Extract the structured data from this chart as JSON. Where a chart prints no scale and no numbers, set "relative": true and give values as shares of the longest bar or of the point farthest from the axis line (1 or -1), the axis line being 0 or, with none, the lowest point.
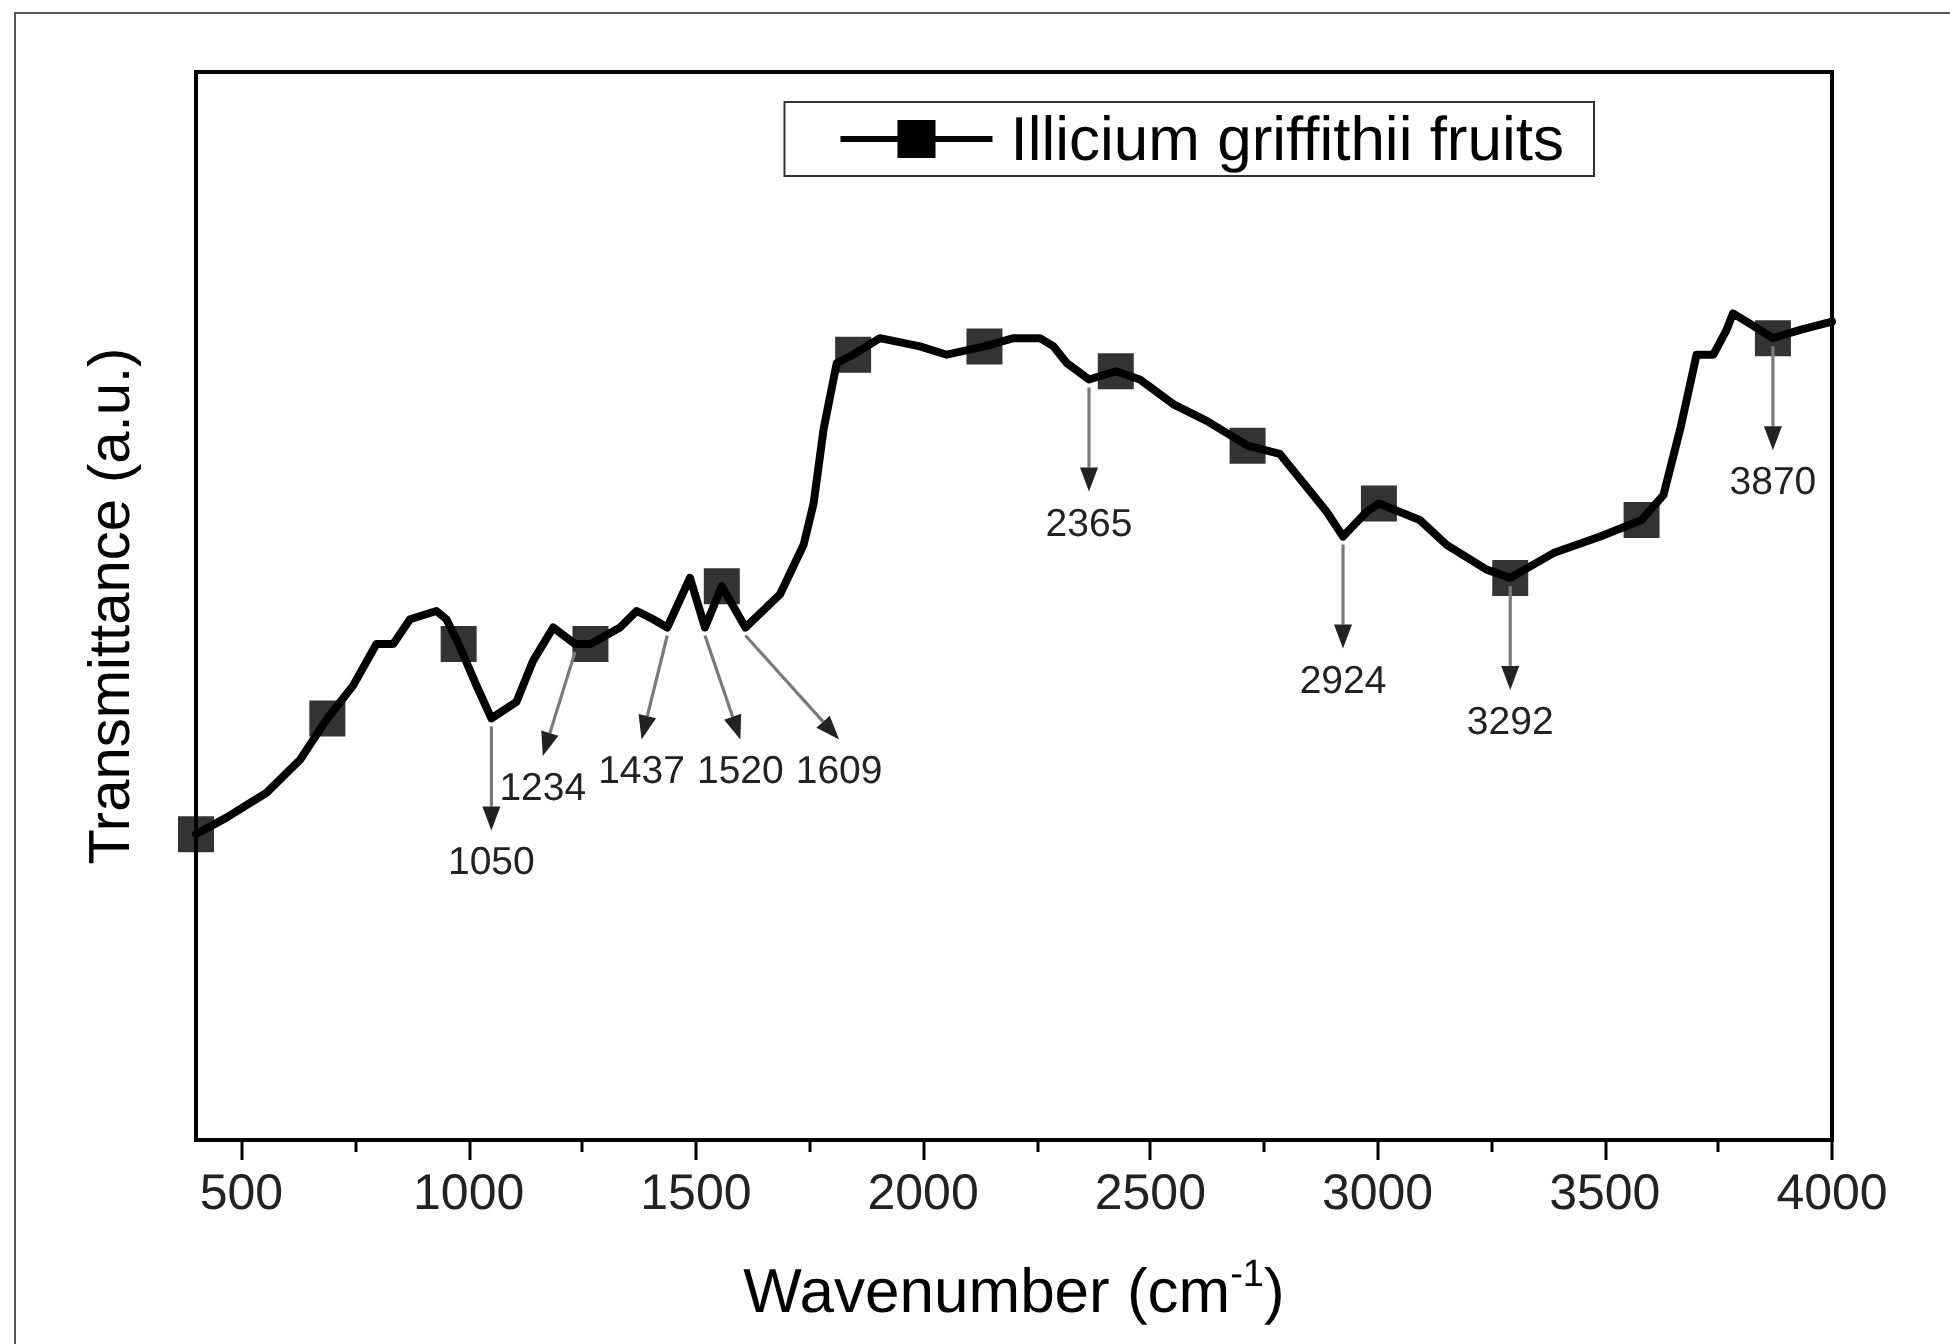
{
  "chart_data": {
    "type": "line",
    "xlabel": "Wavenumber (cm$^{-1}$)",
    "ylabel": "Transmittance (a.u.)",
    "relative": true,
    "xlim": [
      400,
      4000
    ],
    "xticks": [
      500,
      {
        "value": 750,
        "label": null
      },
      1000,
      {
        "value": 1250,
        "label": null
      },
      1500,
      {
        "value": 1750,
        "label": null
      },
      2000,
      {
        "value": 2250,
        "label": null
      },
      2500,
      {
        "value": 2750,
        "label": null
      },
      3000,
      {
        "value": 3250,
        "label": null
      },
      3500,
      {
        "value": 3750,
        "label": null
      },
      4000
    ],
    "grid": false,
    "legend": "top",
    "series": [
      {
        "name": "Illicium griffithii fruits",
        "type": "line",
        "color": "#000000",
        "marker": "none",
        "line_style": "solid",
        "x": [
          400,
          467,
          555,
          629,
          689,
          746,
          797,
          834,
          871,
          929,
          951,
          978,
          1017,
          1050,
          1105,
          1142,
          1186,
          1234,
          1268,
          1333,
          1370,
          1406,
          1437,
          1487,
          1520,
          1557,
          1609,
          1685,
          1737,
          1759,
          1781,
          1810,
          1846,
          1905,
          1993,
          2052,
          2135,
          2199,
          2257,
          2287,
          2316,
          2365,
          2424,
          2477,
          2551,
          2624,
          2714,
          2785,
          2844,
          2888,
          2924,
          2976,
          3003,
          3093,
          3152,
          3240,
          3292,
          3387,
          3490,
          3581,
          3629,
          3666,
          3702,
          3739,
          3768,
          3782,
          3812,
          3870,
          3930,
          4000
        ],
        "values": [
          0.37,
          0.39,
          0.42,
          0.46,
          0.51,
          0.55,
          0.6,
          0.6,
          0.63,
          0.64,
          0.63,
          0.6,
          0.55,
          0.51,
          0.53,
          0.58,
          0.62,
          0.6,
          0.6,
          0.62,
          0.64,
          0.63,
          0.62,
          0.68,
          0.62,
          0.67,
          0.62,
          0.66,
          0.72,
          0.77,
          0.86,
          0.94,
          0.95,
          0.97,
          0.96,
          0.95,
          0.96,
          0.97,
          0.97,
          0.96,
          0.94,
          0.92,
          0.93,
          0.92,
          0.89,
          0.87,
          0.84,
          0.83,
          0.79,
          0.76,
          0.73,
          0.76,
          0.77,
          0.75,
          0.72,
          0.69,
          0.68,
          0.71,
          0.73,
          0.75,
          0.78,
          0.86,
          0.95,
          0.95,
          0.98,
          1,
          0.99,
          0.97,
          0.98,
          0.99
        ]
      },
      {
        "type": "scatter",
        "color": "#000000",
        "marker": "square",
        "x": [
          400,
          689,
          978,
          1268,
          1557,
          1846,
          2135,
          2424,
          2714,
          3003,
          3292,
          3581,
          3870
        ],
        "values": [
          0.37,
          0.51,
          0.6,
          0.6,
          0.67,
          0.95,
          0.96,
          0.93,
          0.84,
          0.77,
          0.68,
          0.75,
          0.97
        ]
      }
    ],
    "annotations": [
      {
        "text": "1050",
        "x": 1050,
        "y": 0.51
      },
      {
        "text": "1234",
        "x": 1234,
        "y": 0.6
      },
      {
        "text": "1437",
        "x": 1437,
        "y": 0.62
      },
      {
        "text": "1520",
        "x": 1520,
        "y": 0.62
      },
      {
        "text": "1609",
        "x": 1609,
        "y": 0.62
      },
      {
        "text": "2365",
        "x": 2365,
        "y": 0.92
      },
      {
        "text": "2924",
        "x": 2924,
        "y": 0.73
      },
      {
        "text": "3292",
        "x": 3292,
        "y": 0.68
      },
      {
        "text": "3870",
        "x": 3870,
        "y": 0.97
      }
    ]
  }
}
